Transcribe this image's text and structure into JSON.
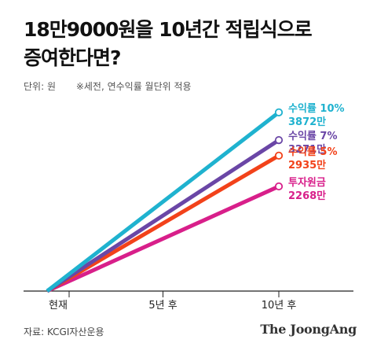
{
  "title_lines": [
    "18만9000원을 10년간 적립식으로",
    "증여한다면?"
  ],
  "unit_label": "단위: 원",
  "note": "※세전, 연수익률 월단위 적용",
  "source": "자료: KCGI자산운용",
  "logo": "The JoongAng",
  "colors": {
    "teal": "#1fb2cf",
    "purple": "#6a46a6",
    "orange": "#f2421a",
    "magenta": "#d81f8a"
  },
  "chart_data": {
    "type": "line",
    "x": [
      "현재",
      "5년 후",
      "10년 후"
    ],
    "x_ticks": [
      {
        "pos": 0,
        "label": "현재"
      },
      {
        "pos": 5,
        "label": "5년 후"
      },
      {
        "pos": 10,
        "label": "10년 후"
      }
    ],
    "xlim": [
      0,
      10
    ],
    "ylim": [
      0,
      4500
    ],
    "unit": "만",
    "series": [
      {
        "name": "수익률 10%",
        "start": 0,
        "end": 3872,
        "label": "3872만",
        "color": "#1fb2cf"
      },
      {
        "name": "수익률 7%",
        "start": 0,
        "end": 3271,
        "label": "3271만",
        "color": "#6a46a6"
      },
      {
        "name": "수익률 5%",
        "start": 0,
        "end": 2935,
        "label": "2935만",
        "color": "#f2421a"
      },
      {
        "name": "투자원금",
        "start": 0,
        "end": 2268,
        "label": "2268만",
        "color": "#d81f8a"
      }
    ]
  }
}
